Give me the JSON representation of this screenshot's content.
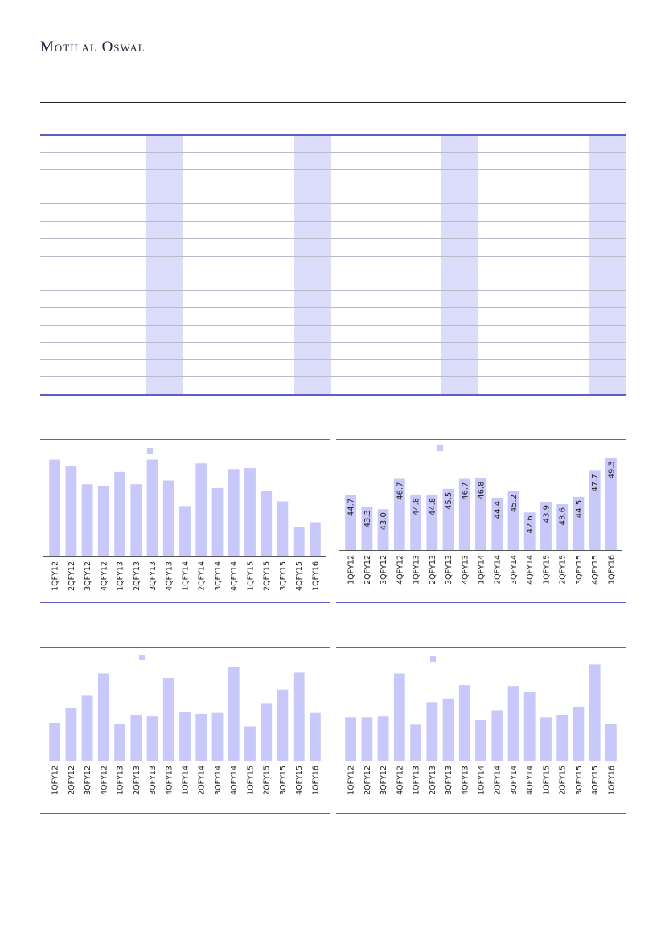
{
  "brand": "Motilal Oswal",
  "chart_data": [
    {
      "type": "bar",
      "categories": [
        "1QFY12",
        "2QFY12",
        "3QFY12",
        "4QFY12",
        "1QFY13",
        "2QFY13",
        "3QFY13",
        "4QFY13",
        "1QFY14",
        "2QFY14",
        "3QFY14",
        "4QFY14",
        "1QFY15",
        "2QFY15",
        "3QFY15",
        "4QFY15",
        "1QFY16"
      ],
      "values": [
        102,
        95,
        76,
        74,
        89,
        76,
        102,
        80,
        53,
        98,
        72,
        92,
        93,
        69,
        58,
        31,
        36
      ],
      "ylim": [
        0,
        110
      ],
      "color": "#c8c8fa",
      "show_labels": false
    },
    {
      "type": "bar",
      "categories": [
        "1QFY12",
        "2QFY12",
        "3QFY12",
        "4QFY12",
        "1QFY13",
        "2QFY13",
        "3QFY13",
        "4QFY13",
        "1QFY14",
        "2QFY14",
        "3QFY14",
        "4QFY14",
        "1QFY15",
        "2QFY15",
        "3QFY15",
        "4QFY15",
        "1QFY16"
      ],
      "values": [
        44.7,
        43.3,
        43.0,
        46.7,
        44.8,
        44.8,
        45.5,
        46.7,
        46.8,
        44.4,
        45.2,
        42.6,
        43.9,
        43.6,
        44.5,
        47.7,
        49.3
      ],
      "labels": [
        "44.7",
        "43.3",
        "43.0",
        "46.7",
        "44.8",
        "44.8",
        "45.5",
        "46.7",
        "46.8",
        "44.4",
        "45.2",
        "42.6",
        "43.9",
        "43.6",
        "44.5",
        "47.7",
        "49.3"
      ],
      "ylim": [
        38,
        50
      ],
      "color": "#c8c8fa",
      "show_labels": true
    },
    {
      "type": "bar",
      "categories": [
        "1QFY12",
        "2QFY12",
        "3QFY12",
        "4QFY12",
        "1QFY13",
        "2QFY13",
        "3QFY13",
        "4QFY13",
        "1QFY14",
        "2QFY14",
        "3QFY14",
        "4QFY14",
        "1QFY15",
        "2QFY15",
        "3QFY15",
        "4QFY15",
        "1QFY16"
      ],
      "values": [
        42,
        59,
        73,
        97,
        41,
        51,
        49,
        92,
        54,
        52,
        53,
        104,
        38,
        64,
        79,
        98,
        53
      ],
      "ylim": [
        0,
        110
      ],
      "color": "#c8c8fa",
      "show_labels": false
    },
    {
      "type": "bar",
      "categories": [
        "1QFY12",
        "2QFY12",
        "3QFY12",
        "4QFY12",
        "1QFY13",
        "2QFY13",
        "3QFY13",
        "4QFY13",
        "1QFY14",
        "2QFY14",
        "3QFY14",
        "4QFY14",
        "1QFY15",
        "2QFY15",
        "3QFY15",
        "4QFY15",
        "1QFY16"
      ],
      "values": [
        48,
        48,
        49,
        97,
        40,
        65,
        69,
        84,
        45,
        56,
        83,
        76,
        48,
        51,
        60,
        107,
        41
      ],
      "ylim": [
        0,
        110
      ],
      "color": "#c8c8fa",
      "show_labels": false
    }
  ]
}
